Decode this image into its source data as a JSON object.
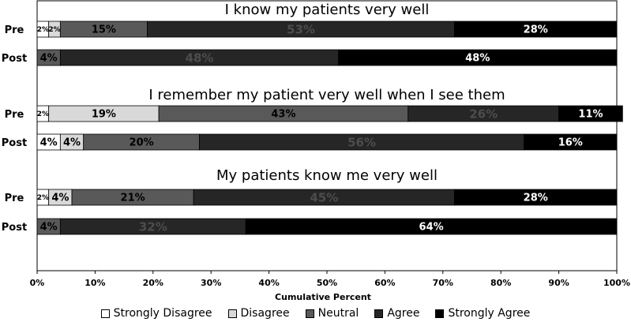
{
  "chart_data": {
    "type": "bar",
    "orientation": "horizontal-stacked-100",
    "xlabel": "Cumulative Percent",
    "xlim": [
      0,
      100
    ],
    "xticks": [
      "0%",
      "10%",
      "20%",
      "30%",
      "40%",
      "50%",
      "60%",
      "70%",
      "80%",
      "90%",
      "100%"
    ],
    "legend_position": "bottom",
    "categories_legend": [
      "Strongly Disagree",
      "Disagree",
      "Neutral",
      "Agree",
      "Strongly Agree"
    ],
    "colors": [
      "#ffffff",
      "#d9d9d9",
      "#595959",
      "#262626",
      "#000000"
    ],
    "label_colors": [
      "#000000",
      "#000000",
      "#000000",
      "#4d4d4d",
      "#ffffff"
    ],
    "groups": [
      {
        "title": "I know my patients very well",
        "rows": [
          {
            "label": "Pre",
            "values": [
              2,
              2,
              15,
              53,
              28
            ],
            "labels": [
              "2%",
              "2%",
              "15%",
              "53%",
              "28%"
            ]
          },
          {
            "label": "Post",
            "values": [
              0,
              0,
              4,
              48,
              48
            ],
            "labels": [
              "",
              "",
              "4%",
              "48%",
              "48%"
            ]
          }
        ]
      },
      {
        "title": "I remember my patient very well when I see them",
        "rows": [
          {
            "label": "Pre",
            "values": [
              2,
              19,
              43,
              26,
              11
            ],
            "labels": [
              "2%",
              "19%",
              "43%",
              "26%",
              "11%"
            ]
          },
          {
            "label": "Post",
            "values": [
              4,
              4,
              20,
              56,
              16
            ],
            "labels": [
              "4%",
              "4%",
              "20%",
              "56%",
              "16%"
            ]
          }
        ]
      },
      {
        "title": "My patients know me very well",
        "rows": [
          {
            "label": "Pre",
            "values": [
              2,
              4,
              21,
              45,
              28
            ],
            "labels": [
              "2%",
              "4%",
              "21%",
              "45%",
              "28%"
            ]
          },
          {
            "label": "Post",
            "values": [
              0,
              0,
              4,
              32,
              64
            ],
            "labels": [
              "",
              "",
              "4%",
              "32%",
              "64%"
            ]
          }
        ]
      }
    ]
  }
}
